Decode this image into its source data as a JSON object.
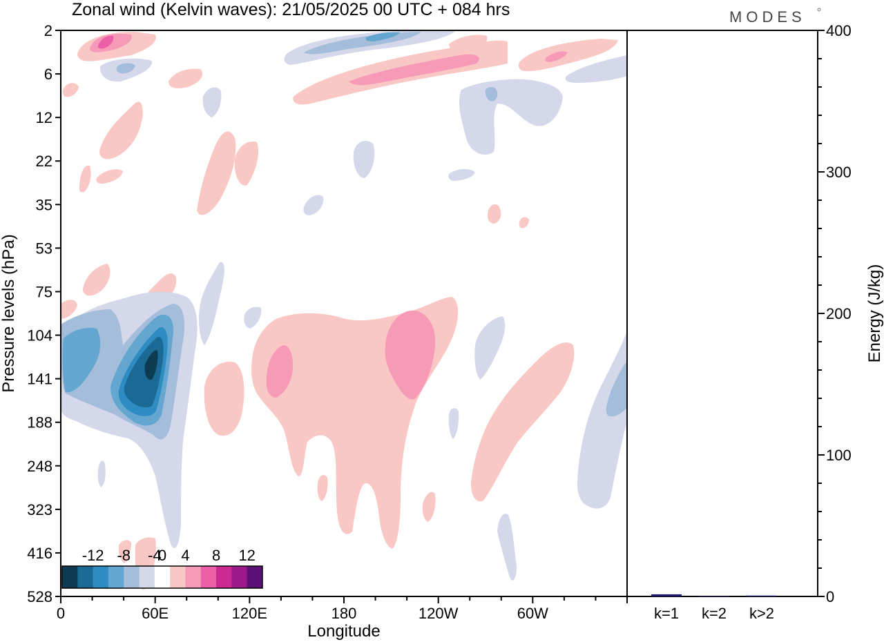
{
  "header": {
    "title": "Zonal wind (Kelvin waves):  21/05/2025  00 UTC  + 084 hrs",
    "logo": "MODES"
  },
  "chart_data": [
    {
      "type": "heatmap",
      "title": "Zonal wind (Kelvin waves):  21/05/2025  00 UTC  + 084 hrs",
      "xlabel": "Longitude",
      "ylabel": "Pressure levels (hPa)",
      "x_ticks": [
        "0",
        "60E",
        "120E",
        "180",
        "120W",
        "60W"
      ],
      "x_range": [
        0,
        360
      ],
      "y_ticks": [
        "2",
        "6",
        "12",
        "22",
        "35",
        "53",
        "75",
        "104",
        "141",
        "188",
        "248",
        "323",
        "416",
        "528"
      ],
      "y_scale": "pressure levels, top 2 hPa, bottom 528 hPa",
      "colorbar": {
        "labels": [
          "-12",
          "-8",
          "-4",
          "0",
          "4",
          "8",
          "12"
        ],
        "levels": [
          -14,
          -12,
          -10,
          -8,
          -6,
          -4,
          -2,
          2,
          4,
          6,
          8,
          10,
          12,
          14
        ],
        "colors": [
          "#0d3b52",
          "#1a6a95",
          "#2f8cc2",
          "#63a6cf",
          "#a4bddb",
          "#d5d8ea",
          "#ffffff",
          "#f9c8c4",
          "#f79ab8",
          "#ea5fa5",
          "#cc2a92",
          "#9b1a88",
          "#5c0f77"
        ]
      },
      "features": [
        {
          "sign": "negative",
          "peak": -12,
          "lon": 56,
          "level": "141",
          "note": "strong easterly core 40E-75E, 104-188 hPa"
        },
        {
          "sign": "negative",
          "peak": -6,
          "lon": 190,
          "level": "2",
          "note": "upper easterly band near 2-6 hPa"
        },
        {
          "sign": "positive",
          "peak": 6,
          "lon": 207,
          "level": "141",
          "note": "westerly maximum near 160W"
        },
        {
          "sign": "positive",
          "peak": 6,
          "lon": 135,
          "level": "141",
          "note": "westerly patch near 135E"
        },
        {
          "sign": "positive",
          "peak": 8,
          "lon": 28,
          "level": "2",
          "note": "upper westerly maximum"
        },
        {
          "sign": "positive",
          "peak": 6,
          "lon": 230,
          "level": "6",
          "note": "upper westerly band"
        }
      ]
    },
    {
      "type": "bar",
      "ylabel": "Energy (J/kg)",
      "ylim": [
        0,
        400
      ],
      "y_ticks": [
        "0",
        "100",
        "200",
        "300",
        "400"
      ],
      "categories": [
        "k=1",
        "k=2",
        "k>2"
      ],
      "values": [
        1.5,
        0.3,
        0.6
      ],
      "color": "#1a1a6e"
    }
  ]
}
